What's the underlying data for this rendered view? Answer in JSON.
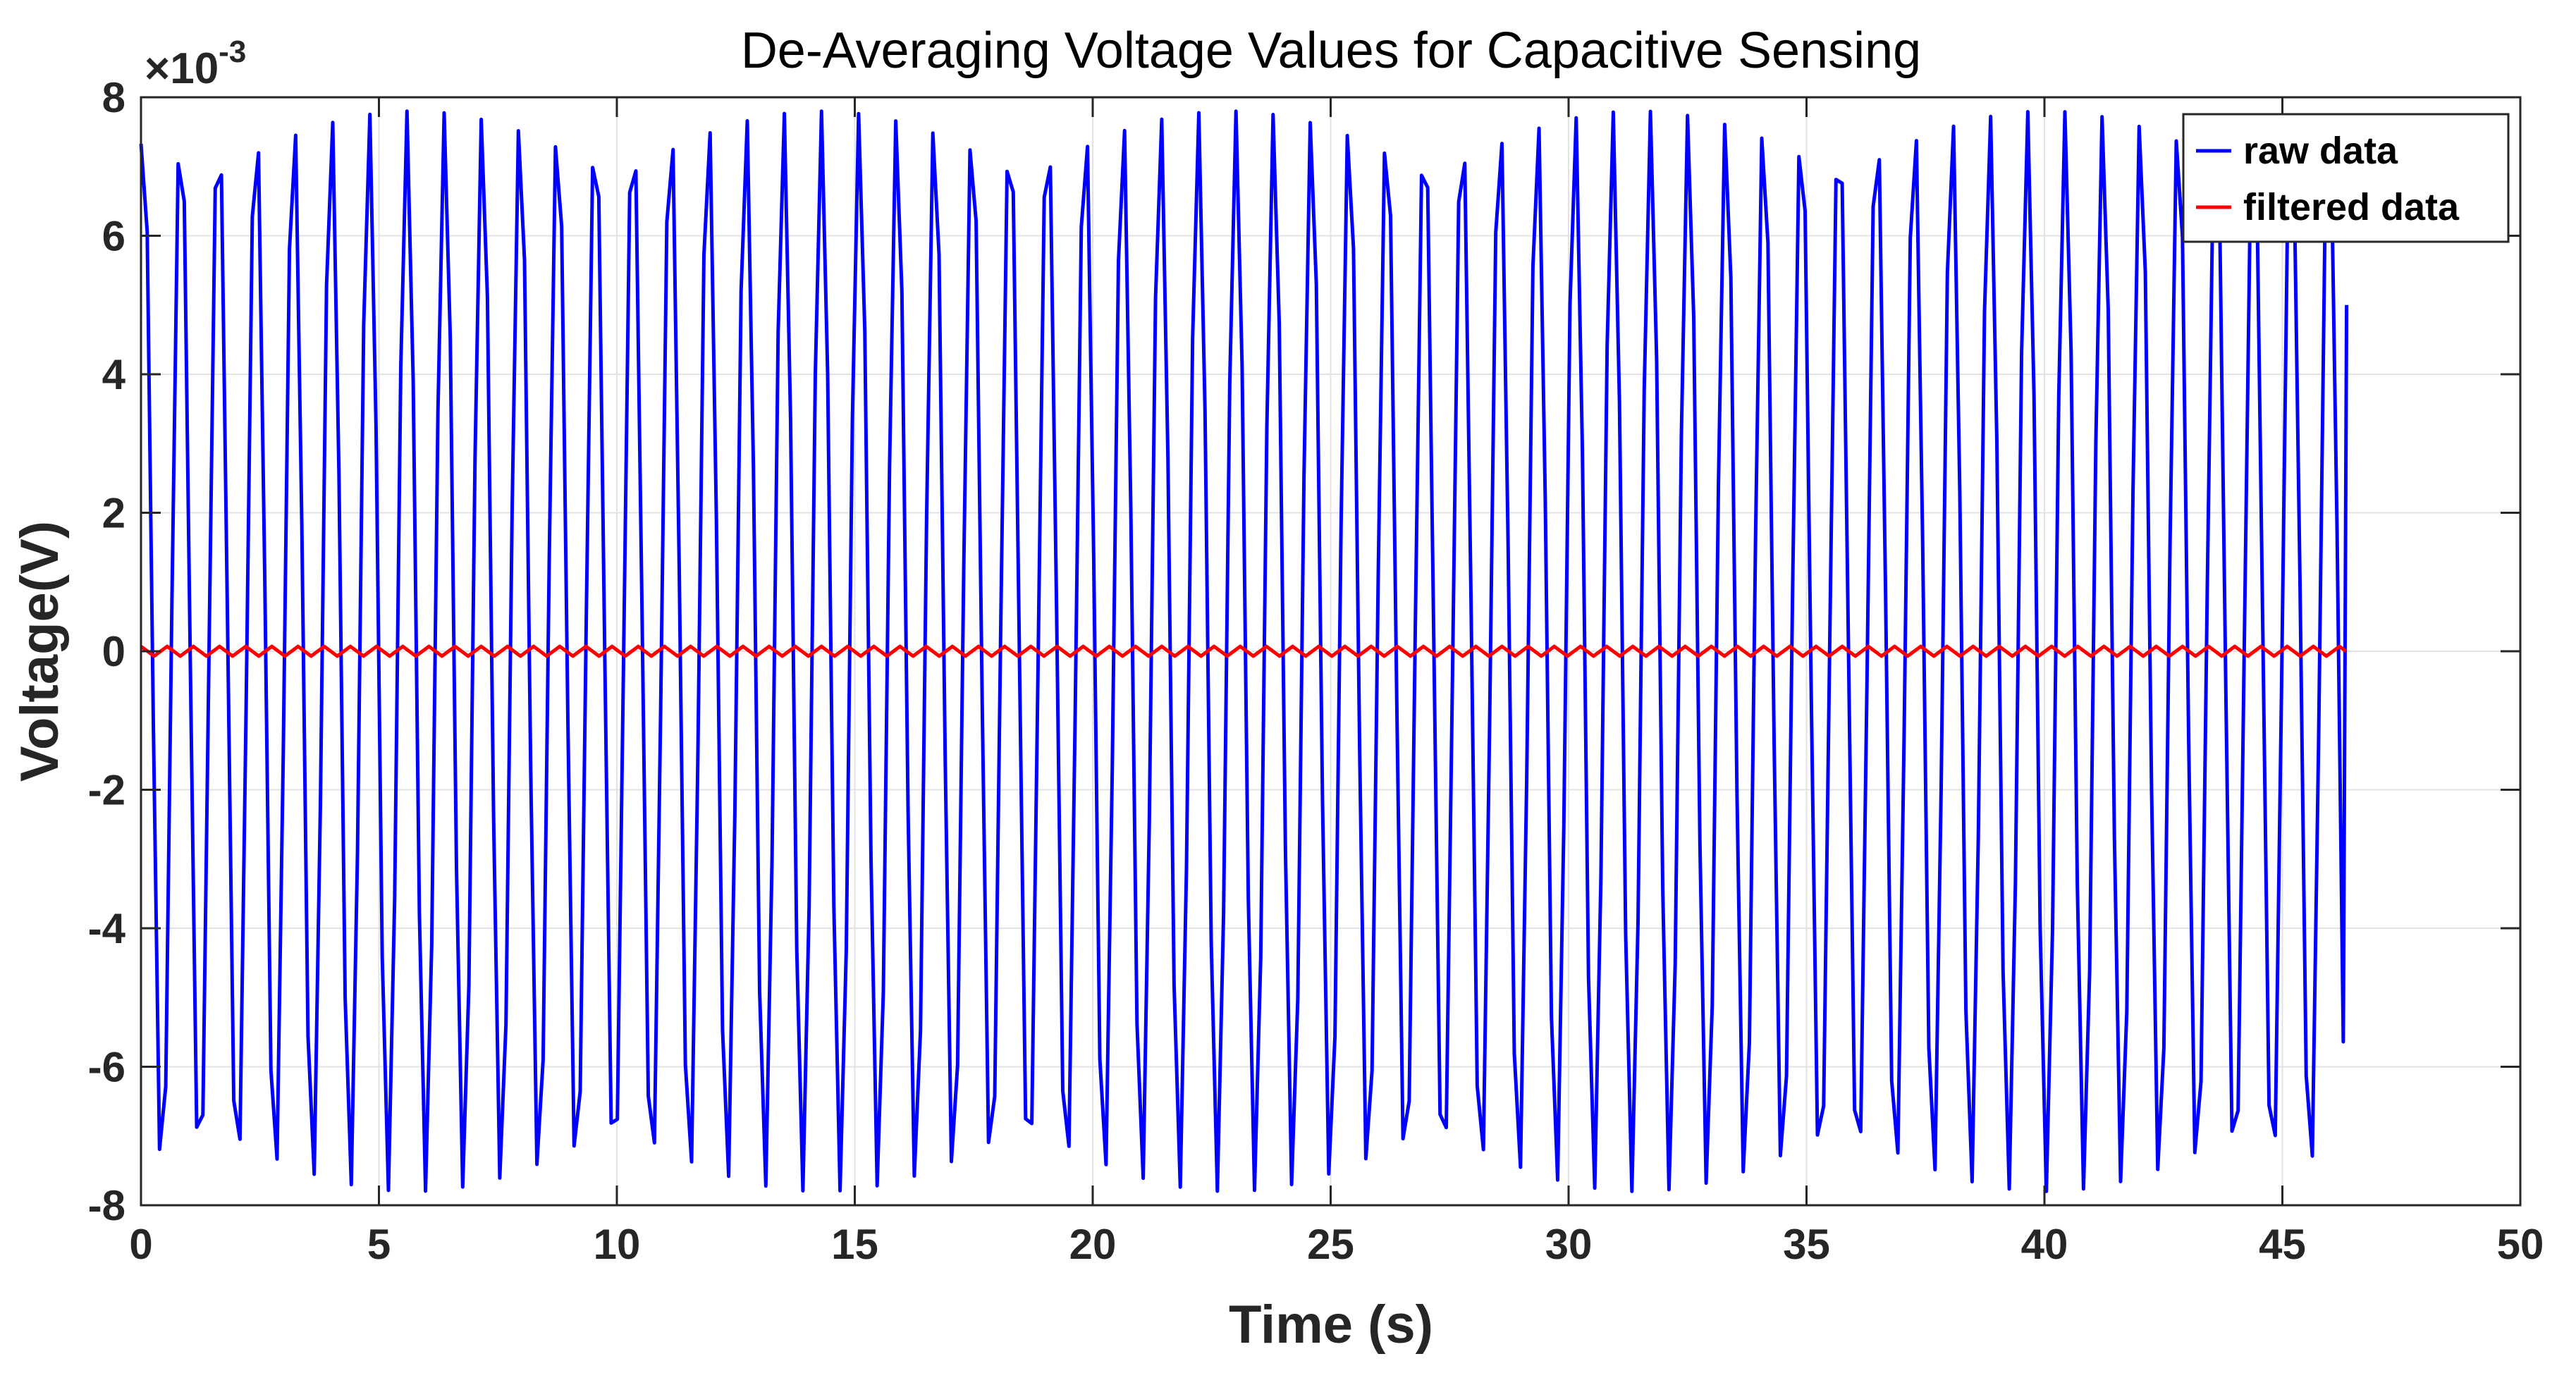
{
  "chart_data": {
    "type": "line",
    "title": "De-Averaging Voltage Values for Capacitive Sensing",
    "xlabel": "Time (s)",
    "ylabel": "Voltage(V)",
    "y_exponent_label": "×10",
    "y_exponent_power": "-3",
    "xlim": [
      0,
      50
    ],
    "ylim": [
      -8,
      8
    ],
    "x_ticks": [
      0,
      5,
      10,
      15,
      20,
      25,
      30,
      35,
      40,
      45,
      50
    ],
    "x_tick_labels": [
      "0",
      "5",
      "10",
      "15",
      "20",
      "25",
      "30",
      "35",
      "40",
      "45",
      "50"
    ],
    "y_ticks": [
      -8,
      -6,
      -4,
      -2,
      0,
      2,
      4,
      6,
      8
    ],
    "y_tick_labels": [
      "-8",
      "-6",
      "-4",
      "-2",
      "0",
      "2",
      "4",
      "6",
      "8"
    ],
    "grid": true,
    "legend_position": "top-right",
    "series": [
      {
        "name": "raw data",
        "color": "#0000ff",
        "description_params": {
          "period_s": 0.792,
          "amplitude": 7.8,
          "x_start": 0,
          "x_end": 46.35,
          "sample_step_s": 0.13,
          "end_value": 5.0
        }
      },
      {
        "name": "filtered data",
        "color": "#ff0000",
        "description_params": {
          "period_s": 0.55,
          "amplitude": 0.07,
          "x_start": 0,
          "x_end": 46.35,
          "sample_step_s": 0.1375
        }
      }
    ]
  },
  "colors": {
    "background": "#ffffff",
    "axis": "#262626",
    "grid": "#e3e3e3",
    "raw": "#0000ff",
    "filtered": "#ff0000"
  }
}
